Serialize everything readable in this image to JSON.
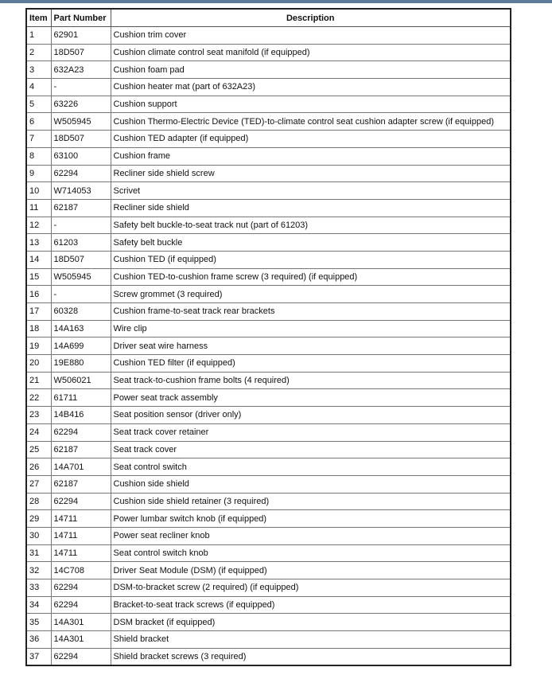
{
  "header": {
    "item": "Item",
    "part_number": "Part Number",
    "description": "Description"
  },
  "rows": [
    {
      "item": "1",
      "part": "62901",
      "desc": "Cushion trim cover"
    },
    {
      "item": "2",
      "part": "18D507",
      "desc": "Cushion climate control seat manifold (if equipped)"
    },
    {
      "item": "3",
      "part": "632A23",
      "desc": "Cushion foam pad"
    },
    {
      "item": "4",
      "part": "-",
      "desc": "Cushion heater mat (part of 632A23)"
    },
    {
      "item": "5",
      "part": "63226",
      "desc": "Cushion support"
    },
    {
      "item": "6",
      "part": "W505945",
      "desc": "Cushion Thermo-Electric Device (TED)-to-climate control seat cushion adapter screw (if equipped)"
    },
    {
      "item": "7",
      "part": "18D507",
      "desc": "Cushion TED adapter (if equipped)"
    },
    {
      "item": "8",
      "part": "63100",
      "desc": "Cushion frame"
    },
    {
      "item": "9",
      "part": "62294",
      "desc": "Recliner side shield screw"
    },
    {
      "item": "10",
      "part": "W714053",
      "desc": "Scrivet"
    },
    {
      "item": "11",
      "part": "62187",
      "desc": "Recliner side shield"
    },
    {
      "item": "12",
      "part": "-",
      "desc": "Safety belt buckle-to-seat track nut (part of 61203)"
    },
    {
      "item": "13",
      "part": "61203",
      "desc": "Safety belt buckle"
    },
    {
      "item": "14",
      "part": "18D507",
      "desc": "Cushion TED (if equipped)"
    },
    {
      "item": "15",
      "part": "W505945",
      "desc": "Cushion TED-to-cushion frame screw (3 required) (if equipped)"
    },
    {
      "item": "16",
      "part": "-",
      "desc": "Screw grommet (3 required)"
    },
    {
      "item": "17",
      "part": "60328",
      "desc": "Cushion frame-to-seat track rear brackets"
    },
    {
      "item": "18",
      "part": "14A163",
      "desc": "Wire clip"
    },
    {
      "item": "19",
      "part": "14A699",
      "desc": "Driver seat wire harness"
    },
    {
      "item": "20",
      "part": "19E880",
      "desc": "Cushion TED filter (if equipped)"
    },
    {
      "item": "21",
      "part": "W506021",
      "desc": "Seat track-to-cushion frame bolts (4 required)"
    },
    {
      "item": "22",
      "part": "61711",
      "desc": "Power seat track assembly"
    },
    {
      "item": "23",
      "part": "14B416",
      "desc": "Seat position sensor (driver only)"
    },
    {
      "item": "24",
      "part": "62294",
      "desc": "Seat track cover retainer"
    },
    {
      "item": "25",
      "part": "62187",
      "desc": "Seat track cover"
    },
    {
      "item": "26",
      "part": "14A701",
      "desc": "Seat control switch"
    },
    {
      "item": "27",
      "part": "62187",
      "desc": "Cushion side shield"
    },
    {
      "item": "28",
      "part": "62294",
      "desc": "Cushion side shield retainer (3 required)"
    },
    {
      "item": "29",
      "part": "14711",
      "desc": "Power lumbar switch knob (if equipped)"
    },
    {
      "item": "30",
      "part": "14711",
      "desc": "Power seat recliner knob"
    },
    {
      "item": "31",
      "part": "14711",
      "desc": "Seat control switch knob"
    },
    {
      "item": "32",
      "part": "14C708",
      "desc": "Driver Seat Module (DSM) (if equipped)"
    },
    {
      "item": "33",
      "part": "62294",
      "desc": "DSM-to-bracket screw (2 required) (if equipped)"
    },
    {
      "item": "34",
      "part": "62294",
      "desc": "Bracket-to-seat track screws (if equipped)"
    },
    {
      "item": "35",
      "part": "14A301",
      "desc": "DSM bracket (if equipped)"
    },
    {
      "item": "36",
      "part": "14A301",
      "desc": "Shield bracket"
    },
    {
      "item": "37",
      "part": "62294",
      "desc": "Shield bracket screws (3 required)"
    }
  ]
}
